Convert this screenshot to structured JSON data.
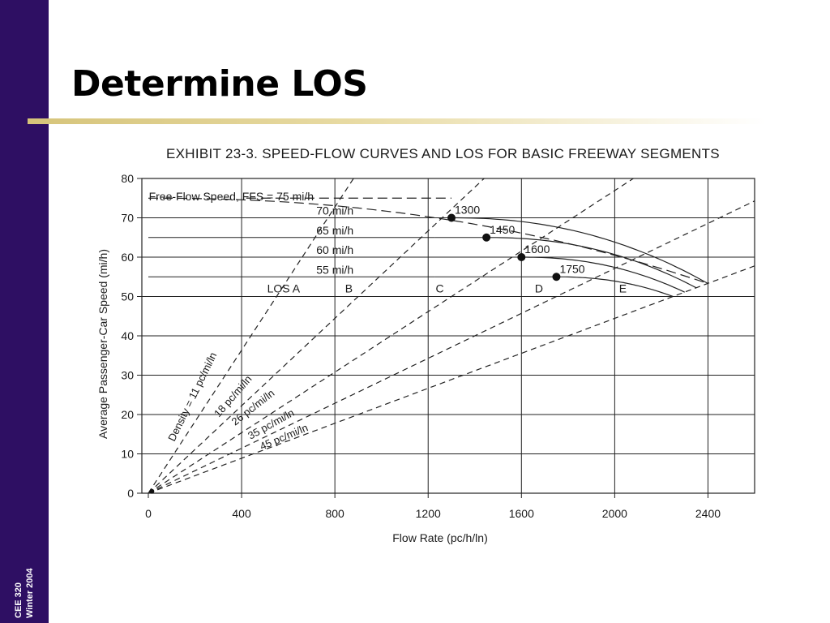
{
  "slide": {
    "title": "Determine LOS",
    "course_line1": "CEE 320",
    "course_line2": "Winter 2004",
    "accent_color": "#2e0f63"
  },
  "chart_data": {
    "type": "line",
    "title": "EXHIBIT 23-3. SPEED-FLOW CURVES AND LOS FOR BASIC FREEWAY SEGMENTS",
    "xlabel": "Flow Rate (pc/h/ln)",
    "ylabel": "Average Passenger-Car Speed (mi/h)",
    "xlim": [
      0,
      2600
    ],
    "ylim": [
      0,
      80
    ],
    "xticks": [
      0,
      400,
      800,
      1200,
      1600,
      2000,
      2400
    ],
    "yticks": [
      0,
      10,
      20,
      30,
      40,
      50,
      60,
      70,
      80
    ],
    "grid": true,
    "ffs_header": "Free-Flow Speed, FFS = 75 mi/h",
    "speed_curves": [
      {
        "name": "75 mi/h",
        "breakpoint": 0,
        "capacity": 2400,
        "speed_at_capacity": 53.3,
        "ffs": 75,
        "dashed": true,
        "show_label": false
      },
      {
        "name": "70 mi/h",
        "breakpoint": 1300,
        "capacity": 2400,
        "speed_at_capacity": 53.3,
        "ffs": 70,
        "dashed": false,
        "show_label": true
      },
      {
        "name": "65 mi/h",
        "breakpoint": 1450,
        "capacity": 2350,
        "speed_at_capacity": 52.2,
        "ffs": 65,
        "dashed": false,
        "show_label": true
      },
      {
        "name": "60 mi/h",
        "breakpoint": 1600,
        "capacity": 2300,
        "speed_at_capacity": 51.1,
        "ffs": 60,
        "dashed": false,
        "show_label": true
      },
      {
        "name": "55 mi/h",
        "breakpoint": 1750,
        "capacity": 2250,
        "speed_at_capacity": 50,
        "ffs": 55,
        "dashed": false,
        "show_label": true
      }
    ],
    "breakpoints": [
      {
        "label": "1300",
        "x": 1300,
        "y": 70
      },
      {
        "label": "1450",
        "x": 1450,
        "y": 65
      },
      {
        "label": "1600",
        "x": 1600,
        "y": 60
      },
      {
        "label": "1750",
        "x": 1750,
        "y": 55
      }
    ],
    "density_lines": [
      {
        "name": "Density = 11 pc/mi/ln",
        "density": 11
      },
      {
        "name": "18 pc/mi/ln",
        "density": 18
      },
      {
        "name": "26 pc/mi/ln",
        "density": 26
      },
      {
        "name": "35 pc/mi/ln",
        "density": 35
      },
      {
        "name": "45 pc/mi/ln",
        "density": 45
      }
    ],
    "los_labels": [
      {
        "label": "LOS A",
        "x": 580,
        "y": 51
      },
      {
        "label": "B",
        "x": 860,
        "y": 51
      },
      {
        "label": "C",
        "x": 1250,
        "y": 51
      },
      {
        "label": "D",
        "x": 1675,
        "y": 51
      },
      {
        "label": "E",
        "x": 2035,
        "y": 51
      }
    ]
  }
}
